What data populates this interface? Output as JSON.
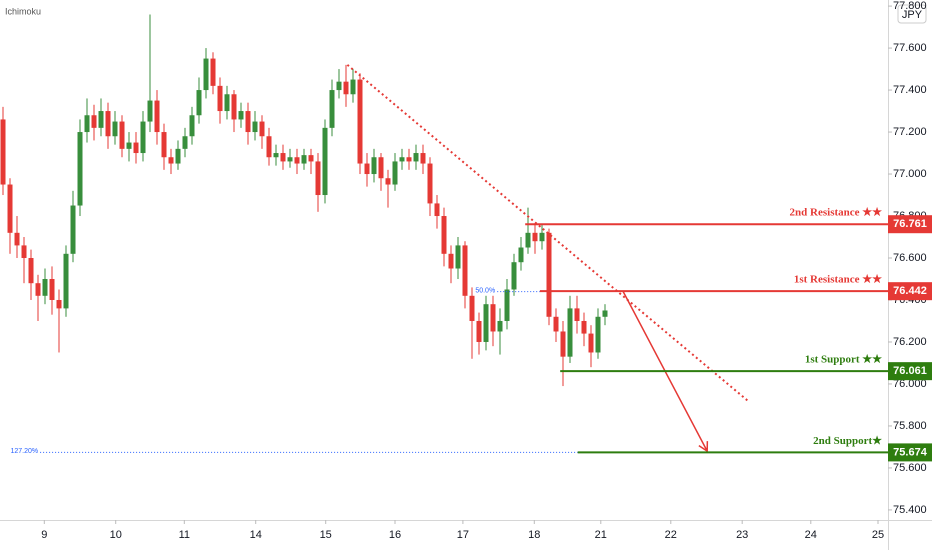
{
  "chart_data": {
    "type": "candlestick",
    "title": "Ichimoku",
    "currency": "JPY",
    "xlim": [
      -0.43,
      126.43
    ],
    "ylim": [
      75.352,
      77.829
    ],
    "xticks": [
      {
        "value": 5.9,
        "label": "9"
      },
      {
        "value": 16.1,
        "label": "10"
      },
      {
        "value": 25.9,
        "label": "11"
      },
      {
        "value": 36.1,
        "label": "14"
      },
      {
        "value": 46.1,
        "label": "15"
      },
      {
        "value": 56,
        "label": "16"
      },
      {
        "value": 65.7,
        "label": "17"
      },
      {
        "value": 75.9,
        "label": "18"
      },
      {
        "value": 85.4,
        "label": "21"
      },
      {
        "value": 95.4,
        "label": "22"
      },
      {
        "value": 105.6,
        "label": "23"
      },
      {
        "value": 115.4,
        "label": "24"
      },
      {
        "value": 125,
        "label": "25"
      }
    ],
    "yticks": [
      {
        "value": 75.4,
        "label": "75.400"
      },
      {
        "value": 75.6,
        "label": "75.600"
      },
      {
        "value": 75.8,
        "label": "75.800"
      },
      {
        "value": 76.0,
        "label": "76.000"
      },
      {
        "value": 76.2,
        "label": "76.200"
      },
      {
        "value": 76.4,
        "label": "76.400"
      },
      {
        "value": 76.6,
        "label": "76.600"
      },
      {
        "value": 76.8,
        "label": "76.800"
      },
      {
        "value": 77.0,
        "label": "77.000"
      },
      {
        "value": 77.2,
        "label": "77.200"
      },
      {
        "value": 77.4,
        "label": "77.400"
      },
      {
        "value": 77.6,
        "label": "77.600"
      },
      {
        "value": 77.8,
        "label": "77.800"
      }
    ],
    "up_color": "#388e3c",
    "down_color": "#e53935",
    "open": [
      77.26,
      76.95,
      76.72,
      76.66,
      76.6,
      76.48,
      76.42,
      76.5,
      76.4,
      76.36,
      76.62,
      76.85,
      77.2,
      77.28,
      77.22,
      77.3,
      77.18,
      77.25,
      77.12,
      77.15,
      77.1,
      77.25,
      77.35,
      77.2,
      77.08,
      77.05,
      77.12,
      77.18,
      77.28,
      77.4,
      77.55,
      77.42,
      77.3,
      77.38,
      77.26,
      77.3,
      77.2,
      77.25,
      77.18,
      77.08,
      77.1,
      77.06,
      77.08,
      77.05,
      77.09,
      77.06,
      76.9,
      77.22,
      77.4,
      77.44,
      77.38,
      77.45,
      77.05,
      77.0,
      77.08,
      76.98,
      76.95,
      77.06,
      77.08,
      77.06,
      77.1,
      77.05,
      76.86,
      76.8,
      76.62,
      76.55,
      76.66,
      76.42,
      76.3,
      76.2,
      76.38,
      76.25,
      76.3,
      76.45,
      76.58,
      76.65,
      76.72,
      76.68,
      76.72,
      76.32,
      76.25,
      76.13,
      76.36,
      76.3,
      76.24,
      76.15,
      76.32
    ],
    "high": [
      77.32,
      76.98,
      76.8,
      76.7,
      76.64,
      76.52,
      76.55,
      76.56,
      76.45,
      76.66,
      76.92,
      77.26,
      77.36,
      77.33,
      77.36,
      77.34,
      77.3,
      77.28,
      77.2,
      77.2,
      77.3,
      77.76,
      77.4,
      77.24,
      77.12,
      77.16,
      77.22,
      77.32,
      77.46,
      77.6,
      77.58,
      77.46,
      77.42,
      77.4,
      77.34,
      77.34,
      77.3,
      77.28,
      77.22,
      77.14,
      77.14,
      77.12,
      77.12,
      77.12,
      77.12,
      77.1,
      77.26,
      77.45,
      77.5,
      77.52,
      77.5,
      77.48,
      77.1,
      77.12,
      77.1,
      77.02,
      77.1,
      77.12,
      77.12,
      77.14,
      77.14,
      77.08,
      76.9,
      76.84,
      76.66,
      76.7,
      76.68,
      76.46,
      76.34,
      76.42,
      76.42,
      76.36,
      76.5,
      76.62,
      76.7,
      76.84,
      76.76,
      76.76,
      76.74,
      76.36,
      76.3,
      76.42,
      76.42,
      76.34,
      76.28,
      76.36,
      76.38
    ],
    "low": [
      76.9,
      76.62,
      76.6,
      76.48,
      76.4,
      76.3,
      76.38,
      76.33,
      76.15,
      76.32,
      76.58,
      76.8,
      77.15,
      77.16,
      77.18,
      77.12,
      77.14,
      77.08,
      77.06,
      77.05,
      77.06,
      77.2,
      77.14,
      77.02,
      77.0,
      77.02,
      77.08,
      77.14,
      77.24,
      77.36,
      77.38,
      77.24,
      77.26,
      77.2,
      77.22,
      77.14,
      77.16,
      77.12,
      77.04,
      77.04,
      77.02,
      77.03,
      77.0,
      77.02,
      77.0,
      76.82,
      76.86,
      77.18,
      77.36,
      77.32,
      77.34,
      77.0,
      76.94,
      76.96,
      76.92,
      76.84,
      76.92,
      77.02,
      77.02,
      77.02,
      77.0,
      76.8,
      76.74,
      76.56,
      76.48,
      76.5,
      76.36,
      76.12,
      76.14,
      76.16,
      76.18,
      76.14,
      76.26,
      76.42,
      76.54,
      76.62,
      76.62,
      76.64,
      76.28,
      76.2,
      75.99,
      76.1,
      76.24,
      76.18,
      76.08,
      76.12,
      76.28
    ],
    "close": [
      76.95,
      76.72,
      76.66,
      76.6,
      76.48,
      76.42,
      76.5,
      76.4,
      76.36,
      76.62,
      76.85,
      77.2,
      77.28,
      77.22,
      77.3,
      77.18,
      77.25,
      77.12,
      77.15,
      77.1,
      77.25,
      77.35,
      77.2,
      77.08,
      77.05,
      77.12,
      77.18,
      77.28,
      77.4,
      77.55,
      77.42,
      77.3,
      77.38,
      77.26,
      77.3,
      77.2,
      77.25,
      77.18,
      77.08,
      77.1,
      77.06,
      77.08,
      77.05,
      77.09,
      77.06,
      76.9,
      77.22,
      77.4,
      77.44,
      77.38,
      77.45,
      77.05,
      77.0,
      77.08,
      76.98,
      76.95,
      77.06,
      77.08,
      77.06,
      77.1,
      77.05,
      76.86,
      76.8,
      76.62,
      76.55,
      76.66,
      76.42,
      76.3,
      76.2,
      76.38,
      76.25,
      76.3,
      76.45,
      76.58,
      76.65,
      76.72,
      76.68,
      76.72,
      76.32,
      76.25,
      76.13,
      76.36,
      76.3,
      76.24,
      76.15,
      76.32,
      76.35
    ],
    "levels": [
      {
        "name": "2nd Resistance ★★",
        "value": 76.761,
        "color": "#e53935",
        "start": 74.6
      },
      {
        "name": "1st Resistance ★★",
        "value": 76.442,
        "color": "#e53935",
        "start": 76.7
      },
      {
        "name": "1st Support ★★",
        "value": 76.061,
        "color": "#2e7d0f",
        "start": 79.6
      },
      {
        "name": "2nd Support★",
        "value": 75.674,
        "color": "#2e7d0f",
        "start": 82.1
      }
    ],
    "fib_levels": [
      {
        "label": "50.0%",
        "value": 76.44,
        "start": 70.6,
        "end": 76.7
      },
      {
        "label": "127.20%",
        "value": 75.674,
        "start": 5.3,
        "end": 82.1
      }
    ],
    "trendline": {
      "x": [
        49.2,
        106.4
      ],
      "y": [
        77.52,
        75.92
      ],
      "color": "#e53935"
    },
    "arrow": {
      "x": [
        88.6,
        100.6
      ],
      "y": [
        76.44,
        75.68
      ],
      "color": "#e53935"
    }
  }
}
